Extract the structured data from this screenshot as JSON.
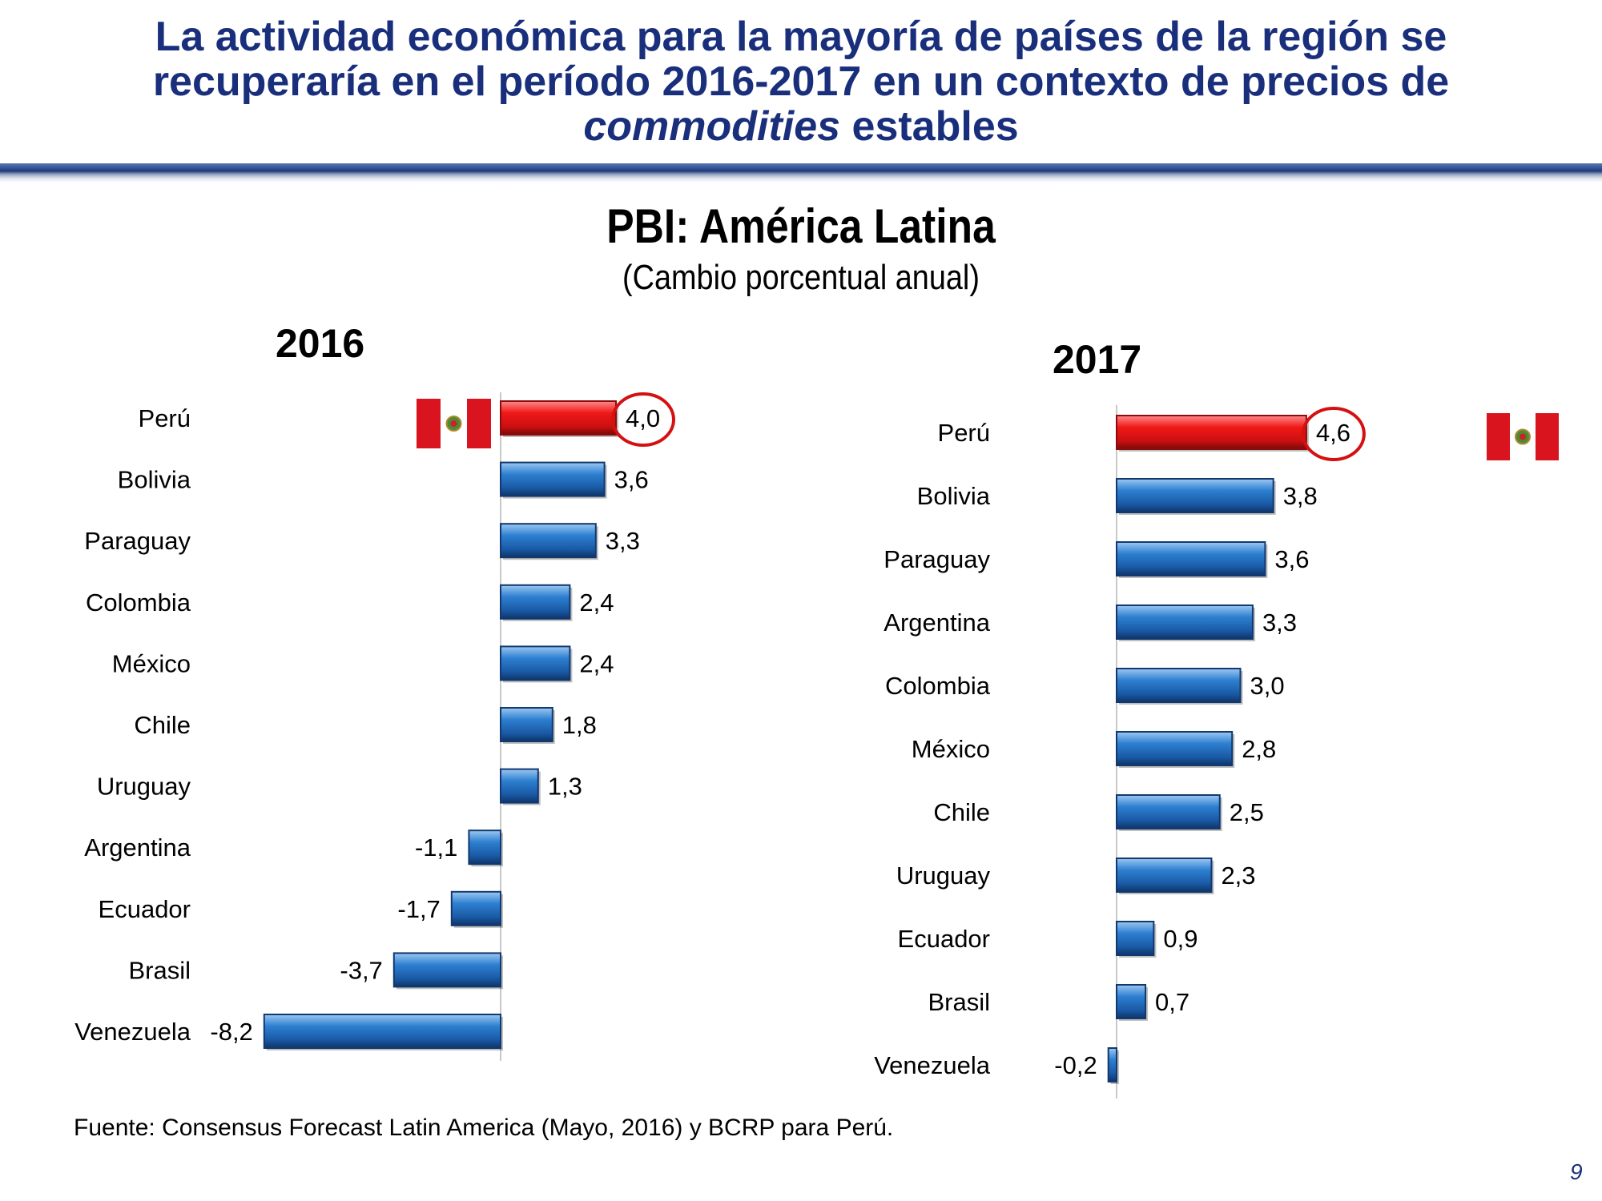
{
  "slide": {
    "headline_line1": "La actividad económica para la mayoría de países de la región se",
    "headline_line2": "recuperaría en el período 2016-2017 en un contexto de precios de",
    "headline_line3_italic": "commodities",
    "headline_line3_rest": " estables",
    "source": "Fuente: Consensus Forecast Latin America  (Mayo, 2016) y BCRP para Perú.",
    "page_number": "9"
  },
  "chart_data": [
    {
      "type": "bar",
      "orientation": "horizontal",
      "title": "PBI: América Latina",
      "subtitle": "(Cambio porcentual anual)",
      "panel_title": "2016",
      "categories": [
        "Perú",
        "Bolivia",
        "Paraguay",
        "Colombia",
        "México",
        "Chile",
        "Uruguay",
        "Argentina",
        "Ecuador",
        "Brasil",
        "Venezuela"
      ],
      "values": [
        4.0,
        3.6,
        3.3,
        2.4,
        2.4,
        1.8,
        1.3,
        -1.1,
        -1.7,
        -3.7,
        -8.2
      ],
      "value_labels": [
        "4,0",
        "3,6",
        "3,3",
        "2,4",
        "2,4",
        "1,8",
        "1,3",
        "-1,1",
        "-1,7",
        "-3,7",
        "-8,2"
      ],
      "highlight": "Perú",
      "xlim": [
        -8.2,
        4.0
      ]
    },
    {
      "type": "bar",
      "orientation": "horizontal",
      "panel_title": "2017",
      "categories": [
        "Perú",
        "Bolivia",
        "Paraguay",
        "Argentina",
        "Colombia",
        "México",
        "Chile",
        "Uruguay",
        "Ecuador",
        "Brasil",
        "Venezuela"
      ],
      "values": [
        4.6,
        3.8,
        3.6,
        3.3,
        3.0,
        2.8,
        2.5,
        2.3,
        0.9,
        0.7,
        -0.2
      ],
      "value_labels": [
        "4,6",
        "3,8",
        "3,6",
        "3,3",
        "3,0",
        "2,8",
        "2,5",
        "2,3",
        "0,9",
        "0,7",
        "-0,2"
      ],
      "highlight": "Perú",
      "xlim": [
        -0.2,
        4.6
      ]
    }
  ],
  "colors": {
    "headline": "#1a2f7c",
    "bar_blue": "#2a78c8",
    "bar_blue_dark": "#12386e",
    "bar_red": "#e01e1e",
    "bar_red_dark": "#8a0c0c",
    "circle": "#d41010",
    "flag_red": "#d9141e"
  },
  "icons": [
    "peru-flag-icon"
  ]
}
